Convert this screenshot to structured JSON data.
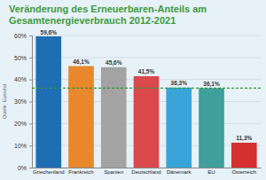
{
  "chart_data": {
    "type": "bar",
    "title": "Veränderung des Erneuerbaren-Anteils am Gesamtenergieverbrauch 2012-2021",
    "source": "Quelle: Eurostat",
    "categories": [
      "Griechenland",
      "Frankreich",
      "Spanien",
      "Deutschland",
      "Dänemark",
      "EU",
      "Österreich"
    ],
    "values": [
      59.6,
      46.1,
      45.6,
      41.5,
      36.3,
      36.1,
      11.3
    ],
    "value_labels": [
      "59,6%",
      "46,1%",
      "45,6%",
      "41,5%",
      "36,3%",
      "36,1%",
      "11,3%"
    ],
    "colors": [
      "#1f6db3",
      "#e8872c",
      "#a3a3a3",
      "#d8484d",
      "#3aa3d8",
      "#3f9f9a",
      "#d62f2f"
    ],
    "reference_line": 36.1,
    "ylim": [
      0,
      60
    ],
    "yticks": [
      {
        "value": 0,
        "label": "0%"
      },
      {
        "value": 10,
        "label": "10%"
      },
      {
        "value": 20,
        "label": "20%"
      },
      {
        "value": 30,
        "label": "30%"
      },
      {
        "value": 40,
        "label": "40%"
      },
      {
        "value": 50,
        "label": "50%"
      },
      {
        "value": 60,
        "label": "60%"
      }
    ],
    "grid": true,
    "data_labels": true
  }
}
